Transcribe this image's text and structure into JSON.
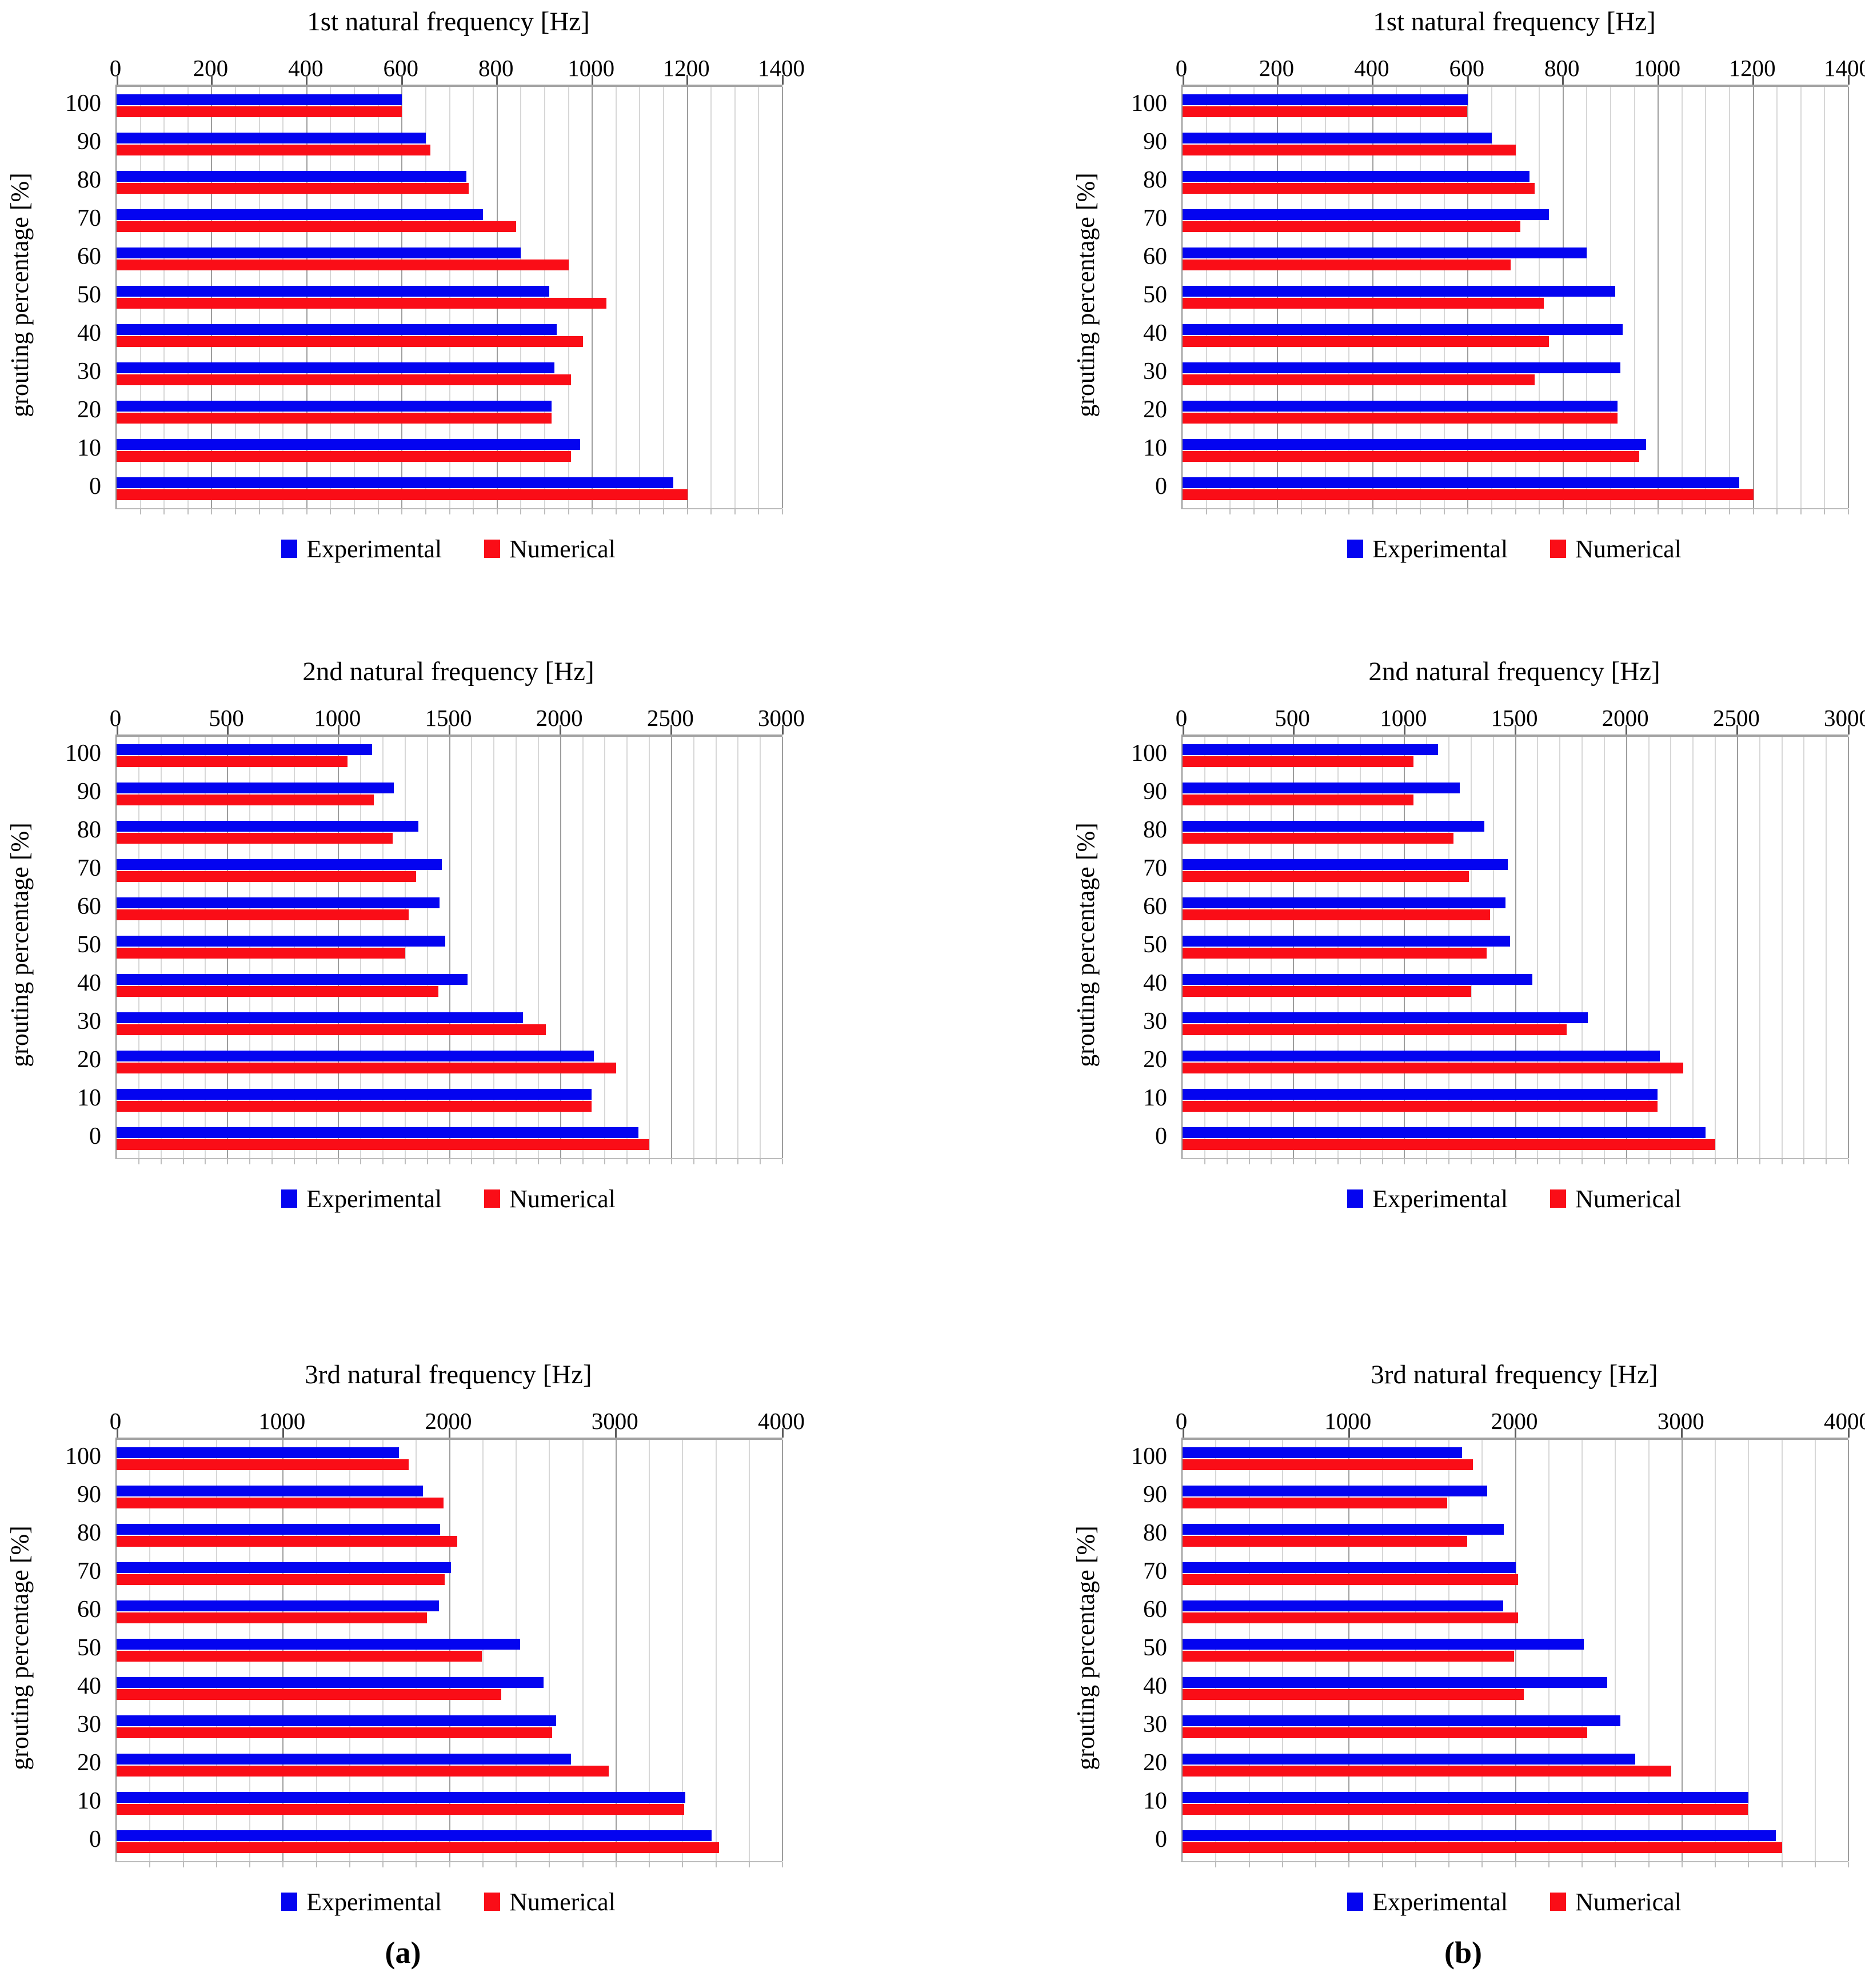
{
  "figure": {
    "ylabel": "grouting percentage [%]",
    "panel_labels": [
      "(a)",
      "(b)"
    ],
    "legend": {
      "experimental_label": "Experimental",
      "numerical_label": "Numerical"
    },
    "colors": {
      "experimental": "#0404f0",
      "numerical": "#fa0d17",
      "grid_minor": "#d7d7d7",
      "grid_major": "#9d9d9d",
      "axis": "#8f8f8f"
    },
    "categories": [
      "100",
      "90",
      "80",
      "70",
      "60",
      "50",
      "40",
      "30",
      "20",
      "10",
      "0"
    ]
  },
  "chart_data": [
    {
      "type": "bar",
      "orientation": "horizontal",
      "panel": "a",
      "title": "1st natural frequency [Hz]",
      "xlabel": "",
      "ylabel": "grouting percentage [%]",
      "xlim": [
        0,
        1400
      ],
      "major_tick": 200,
      "minor_tick": 50,
      "tick_labels": [
        "0",
        "200",
        "400",
        "600",
        "800",
        "1000",
        "1200",
        "1400"
      ],
      "grid": true,
      "legend_position": "bottom",
      "categories": [
        "100",
        "90",
        "80",
        "70",
        "60",
        "50",
        "40",
        "30",
        "20",
        "10",
        "0"
      ],
      "series": [
        {
          "name": "Experimental",
          "values": [
            600,
            650,
            735,
            770,
            850,
            910,
            925,
            920,
            915,
            975,
            1170
          ]
        },
        {
          "name": "Numerical",
          "values": [
            600,
            660,
            740,
            840,
            950,
            1030,
            980,
            955,
            915,
            955,
            1200
          ]
        }
      ]
    },
    {
      "type": "bar",
      "orientation": "horizontal",
      "panel": "b",
      "title": "1st natural frequency [Hz]",
      "xlabel": "",
      "ylabel": "grouting percentage [%]",
      "xlim": [
        0,
        1400
      ],
      "major_tick": 200,
      "minor_tick": 50,
      "tick_labels": [
        "0",
        "200",
        "400",
        "600",
        "800",
        "1000",
        "1200",
        "1400"
      ],
      "grid": true,
      "legend_position": "bottom",
      "categories": [
        "100",
        "90",
        "80",
        "70",
        "60",
        "50",
        "40",
        "30",
        "20",
        "10",
        "0"
      ],
      "series": [
        {
          "name": "Experimental",
          "values": [
            600,
            650,
            730,
            770,
            850,
            910,
            925,
            920,
            915,
            975,
            1170
          ]
        },
        {
          "name": "Numerical",
          "values": [
            598,
            700,
            740,
            710,
            690,
            760,
            770,
            740,
            915,
            960,
            1200
          ]
        }
      ]
    },
    {
      "type": "bar",
      "orientation": "horizontal",
      "panel": "a",
      "title": "2nd natural frequency [Hz]",
      "xlabel": "",
      "ylabel": "grouting percentage [%]",
      "xlim": [
        0,
        3000
      ],
      "major_tick": 500,
      "minor_tick": 100,
      "tick_labels": [
        "0",
        "500",
        "1000",
        "1500",
        "2000",
        "2500",
        "3000"
      ],
      "grid": true,
      "legend_position": "bottom",
      "categories": [
        "100",
        "90",
        "80",
        "70",
        "60",
        "50",
        "40",
        "30",
        "20",
        "10",
        "0"
      ],
      "series": [
        {
          "name": "Experimental",
          "values": [
            1150,
            1250,
            1360,
            1465,
            1455,
            1480,
            1580,
            1830,
            2150,
            2140,
            2350
          ]
        },
        {
          "name": "Numerical",
          "values": [
            1040,
            1160,
            1245,
            1350,
            1315,
            1300,
            1450,
            1935,
            2250,
            2140,
            2400
          ]
        }
      ]
    },
    {
      "type": "bar",
      "orientation": "horizontal",
      "panel": "b",
      "title": "2nd natural frequency [Hz]",
      "xlabel": "",
      "ylabel": "grouting percentage [%]",
      "xlim": [
        0,
        3000
      ],
      "major_tick": 500,
      "minor_tick": 100,
      "tick_labels": [
        "0",
        "500",
        "1000",
        "1500",
        "2000",
        "2500",
        "3000"
      ],
      "grid": true,
      "legend_position": "bottom",
      "categories": [
        "100",
        "90",
        "80",
        "70",
        "60",
        "50",
        "40",
        "30",
        "20",
        "10",
        "0"
      ],
      "series": [
        {
          "name": "Experimental",
          "values": [
            1150,
            1250,
            1360,
            1465,
            1455,
            1475,
            1575,
            1825,
            2150,
            2140,
            2355
          ]
        },
        {
          "name": "Numerical",
          "values": [
            1040,
            1040,
            1220,
            1290,
            1385,
            1370,
            1300,
            1730,
            2255,
            2140,
            2400
          ]
        }
      ]
    },
    {
      "type": "bar",
      "orientation": "horizontal",
      "panel": "a",
      "title": "3rd natural frequency [Hz]",
      "xlabel": "",
      "ylabel": "grouting percentage [%]",
      "xlim": [
        0,
        4000
      ],
      "major_tick": 1000,
      "minor_tick": 200,
      "tick_labels": [
        "0",
        "1000",
        "2000",
        "3000",
        "4000"
      ],
      "grid": true,
      "legend_position": "bottom",
      "categories": [
        "100",
        "90",
        "80",
        "70",
        "60",
        "50",
        "40",
        "30",
        "20",
        "10",
        "0"
      ],
      "series": [
        {
          "name": "Experimental",
          "values": [
            1695,
            1840,
            1945,
            2010,
            1935,
            2425,
            2565,
            2640,
            2730,
            3415,
            3575
          ]
        },
        {
          "name": "Numerical",
          "values": [
            1755,
            1965,
            2045,
            1970,
            1865,
            2195,
            2310,
            2615,
            2955,
            3410,
            3620
          ]
        }
      ]
    },
    {
      "type": "bar",
      "orientation": "horizontal",
      "panel": "b",
      "title": "3rd natural frequency [Hz]",
      "xlabel": "",
      "ylabel": "grouting percentage [%]",
      "xlim": [
        0,
        4000
      ],
      "major_tick": 1000,
      "minor_tick": 200,
      "tick_labels": [
        "0",
        "1000",
        "2000",
        "3000",
        "4000"
      ],
      "grid": true,
      "legend_position": "bottom",
      "categories": [
        "100",
        "90",
        "80",
        "70",
        "60",
        "50",
        "40",
        "30",
        "20",
        "10",
        "0"
      ],
      "series": [
        {
          "name": "Experimental",
          "values": [
            1680,
            1830,
            1930,
            2000,
            1925,
            2410,
            2550,
            2630,
            2720,
            3400,
            3565
          ]
        },
        {
          "name": "Numerical",
          "values": [
            1745,
            1590,
            1710,
            2015,
            2015,
            1990,
            2050,
            2430,
            2935,
            3395,
            3600
          ]
        }
      ]
    }
  ]
}
